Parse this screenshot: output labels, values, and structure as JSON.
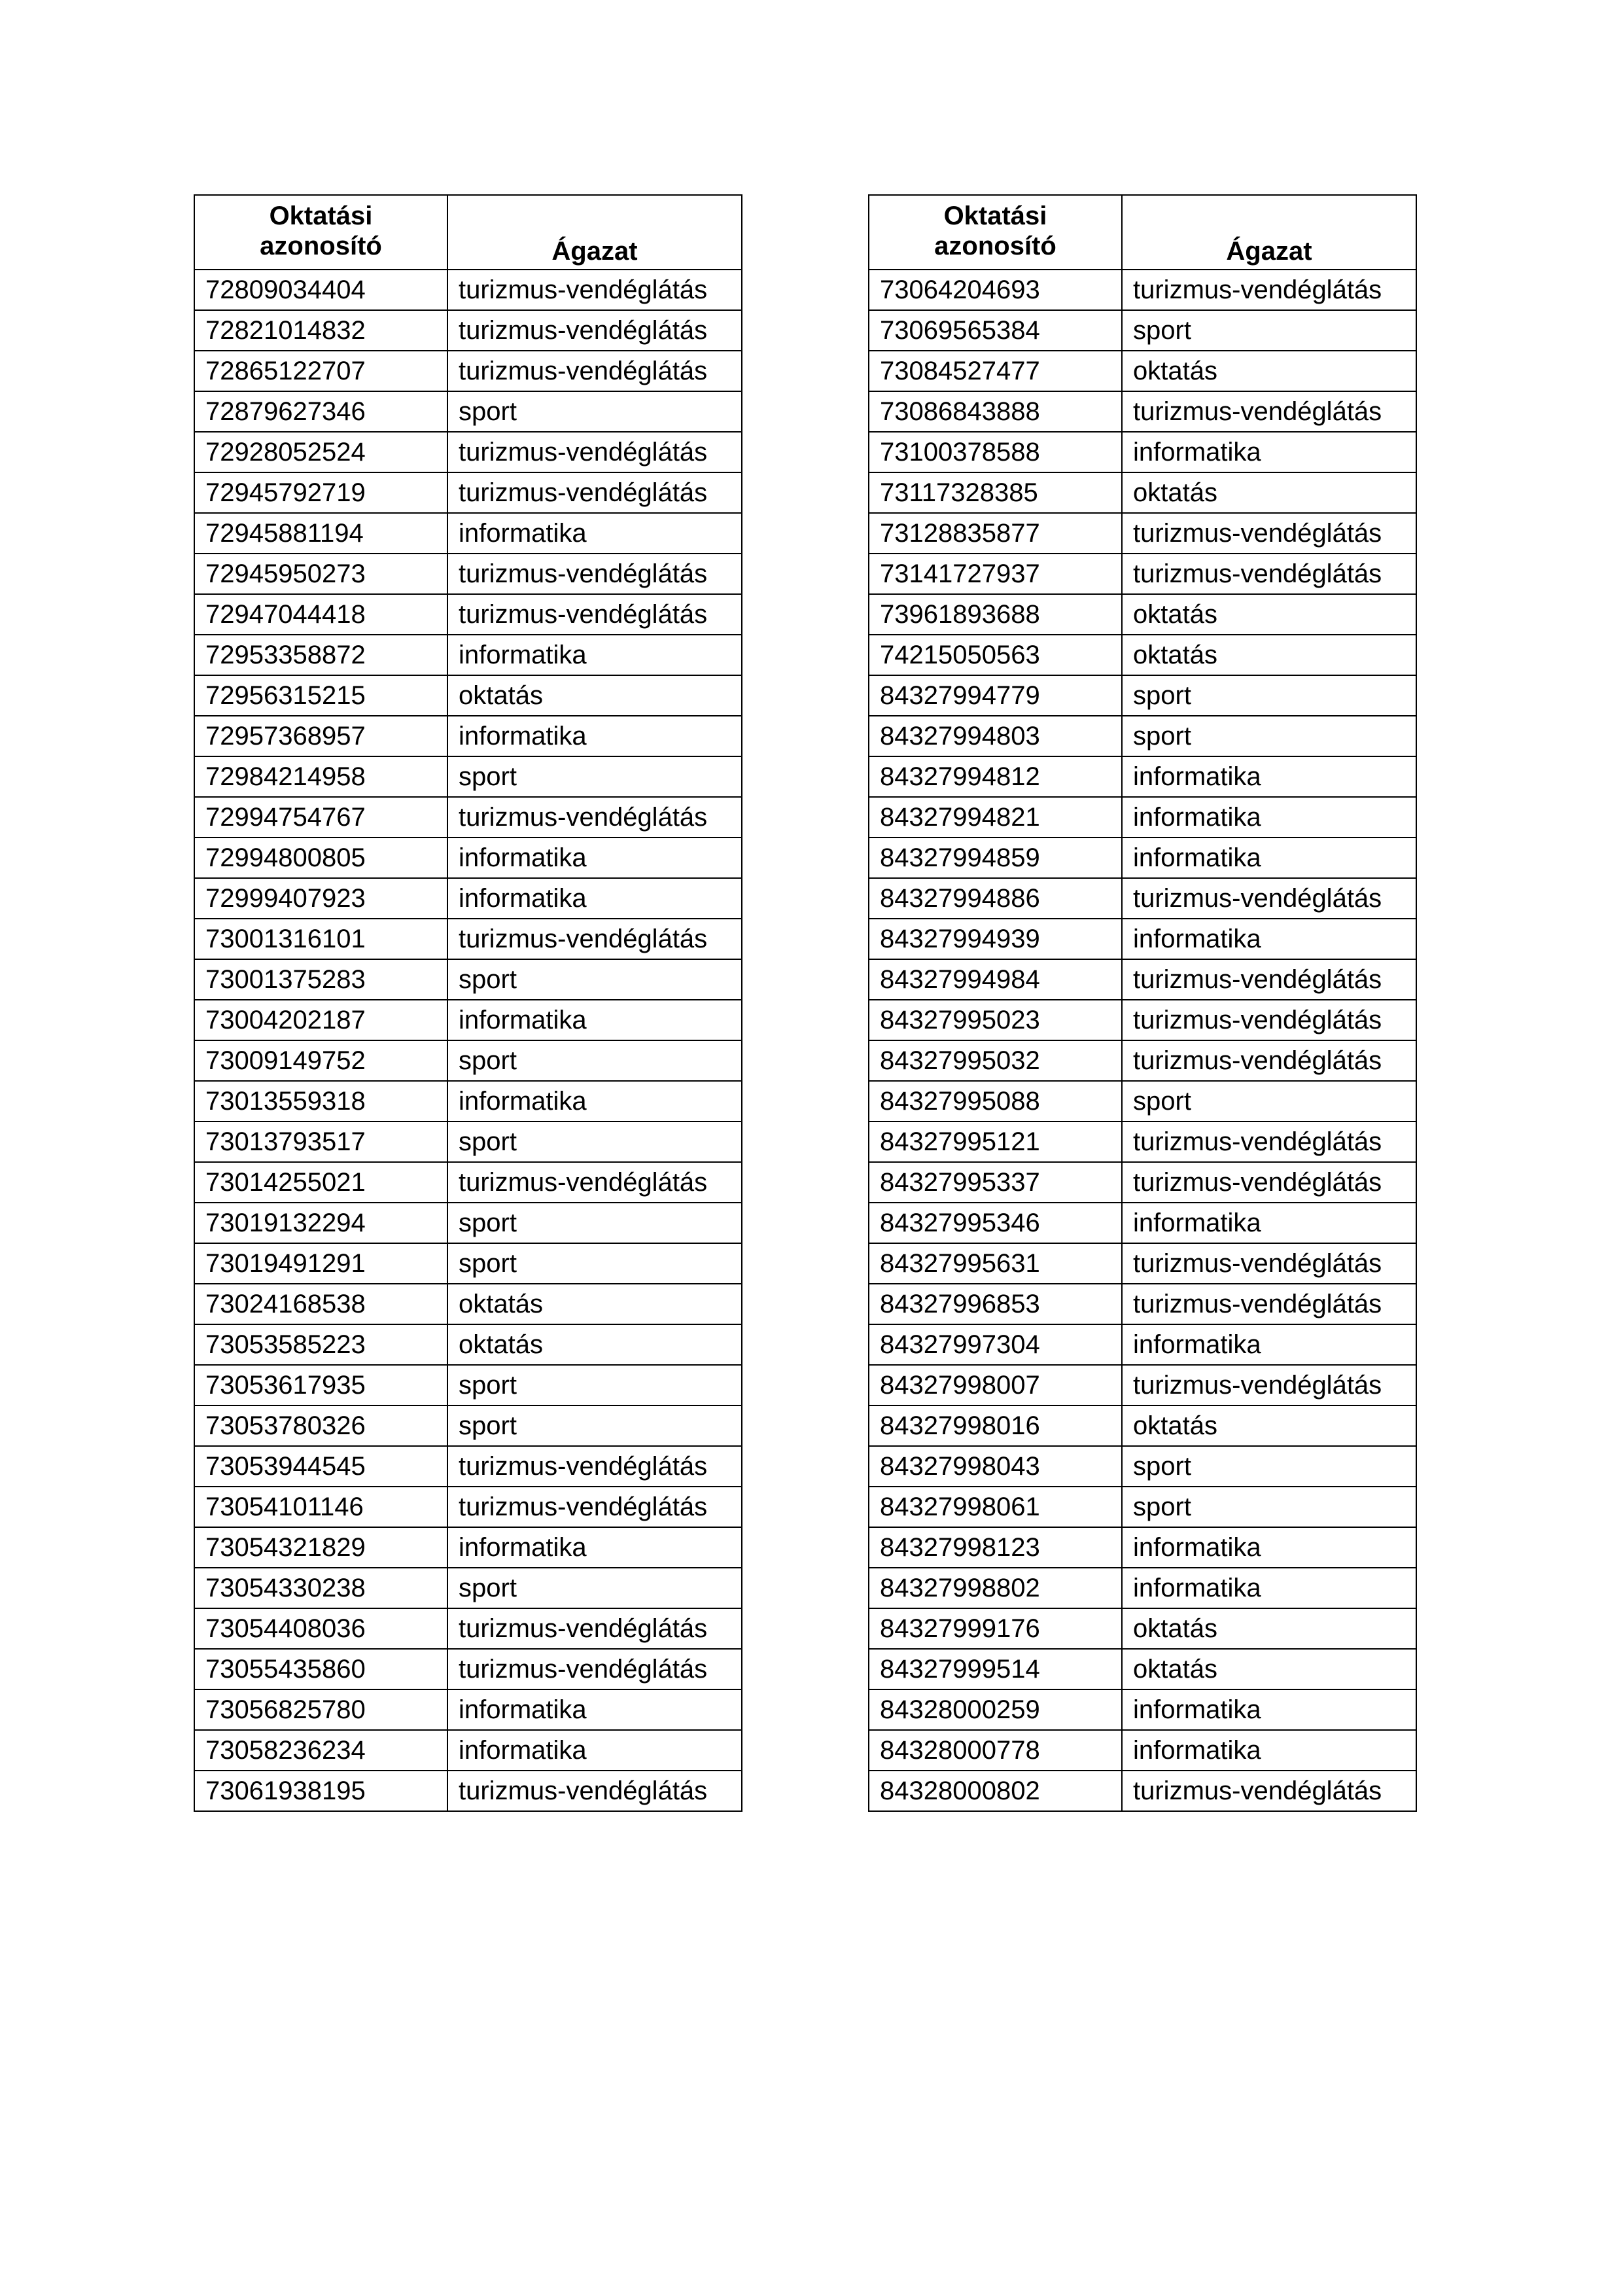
{
  "headers": {
    "id": "Oktatási azonosító",
    "id_line1": "Oktatási",
    "id_line2": "azonosító",
    "sector": "Ágazat"
  },
  "tables": [
    {
      "rows": [
        [
          "72809034404",
          "turizmus-vendéglátás"
        ],
        [
          "72821014832",
          "turizmus-vendéglátás"
        ],
        [
          "72865122707",
          "turizmus-vendéglátás"
        ],
        [
          "72879627346",
          "sport"
        ],
        [
          "72928052524",
          "turizmus-vendéglátás"
        ],
        [
          "72945792719",
          "turizmus-vendéglátás"
        ],
        [
          "72945881194",
          "informatika"
        ],
        [
          "72945950273",
          "turizmus-vendéglátás"
        ],
        [
          "72947044418",
          "turizmus-vendéglátás"
        ],
        [
          "72953358872",
          "informatika"
        ],
        [
          "72956315215",
          "oktatás"
        ],
        [
          "72957368957",
          "informatika"
        ],
        [
          "72984214958",
          "sport"
        ],
        [
          "72994754767",
          "turizmus-vendéglátás"
        ],
        [
          "72994800805",
          "informatika"
        ],
        [
          "72999407923",
          "informatika"
        ],
        [
          "73001316101",
          "turizmus-vendéglátás"
        ],
        [
          "73001375283",
          "sport"
        ],
        [
          "73004202187",
          "informatika"
        ],
        [
          "73009149752",
          "sport"
        ],
        [
          "73013559318",
          "informatika"
        ],
        [
          "73013793517",
          "sport"
        ],
        [
          "73014255021",
          "turizmus-vendéglátás"
        ],
        [
          "73019132294",
          "sport"
        ],
        [
          "73019491291",
          "sport"
        ],
        [
          "73024168538",
          "oktatás"
        ],
        [
          "73053585223",
          "oktatás"
        ],
        [
          "73053617935",
          "sport"
        ],
        [
          "73053780326",
          "sport"
        ],
        [
          "73053944545",
          "turizmus-vendéglátás"
        ],
        [
          "73054101146",
          "turizmus-vendéglátás"
        ],
        [
          "73054321829",
          "informatika"
        ],
        [
          "73054330238",
          "sport"
        ],
        [
          "73054408036",
          "turizmus-vendéglátás"
        ],
        [
          "73055435860",
          "turizmus-vendéglátás"
        ],
        [
          "73056825780",
          "informatika"
        ],
        [
          "73058236234",
          "informatika"
        ],
        [
          "73061938195",
          "turizmus-vendéglátás"
        ]
      ]
    },
    {
      "rows": [
        [
          "73064204693",
          "turizmus-vendéglátás"
        ],
        [
          "73069565384",
          "sport"
        ],
        [
          "73084527477",
          "oktatás"
        ],
        [
          "73086843888",
          "turizmus-vendéglátás"
        ],
        [
          "73100378588",
          "informatika"
        ],
        [
          "73117328385",
          "oktatás"
        ],
        [
          "73128835877",
          "turizmus-vendéglátás"
        ],
        [
          "73141727937",
          "turizmus-vendéglátás"
        ],
        [
          "73961893688",
          "oktatás"
        ],
        [
          "74215050563",
          "oktatás"
        ],
        [
          "84327994779",
          "sport"
        ],
        [
          "84327994803",
          "sport"
        ],
        [
          "84327994812",
          "informatika"
        ],
        [
          "84327994821",
          "informatika"
        ],
        [
          "84327994859",
          "informatika"
        ],
        [
          "84327994886",
          "turizmus-vendéglátás"
        ],
        [
          "84327994939",
          "informatika"
        ],
        [
          "84327994984",
          "turizmus-vendéglátás"
        ],
        [
          "84327995023",
          "turizmus-vendéglátás"
        ],
        [
          "84327995032",
          "turizmus-vendéglátás"
        ],
        [
          "84327995088",
          "sport"
        ],
        [
          "84327995121",
          "turizmus-vendéglátás"
        ],
        [
          "84327995337",
          "turizmus-vendéglátás"
        ],
        [
          "84327995346",
          "informatika"
        ],
        [
          "84327995631",
          "turizmus-vendéglátás"
        ],
        [
          "84327996853",
          "turizmus-vendéglátás"
        ],
        [
          "84327997304",
          "informatika"
        ],
        [
          "84327998007",
          "turizmus-vendéglátás"
        ],
        [
          "84327998016",
          "oktatás"
        ],
        [
          "84327998043",
          "sport"
        ],
        [
          "84327998061",
          "sport"
        ],
        [
          "84327998123",
          "informatika"
        ],
        [
          "84327998802",
          "informatika"
        ],
        [
          "84327999176",
          "oktatás"
        ],
        [
          "84327999514",
          "oktatás"
        ],
        [
          "84328000259",
          "informatika"
        ],
        [
          "84328000778",
          "informatika"
        ],
        [
          "84328000802",
          "turizmus-vendéglátás"
        ]
      ]
    }
  ]
}
